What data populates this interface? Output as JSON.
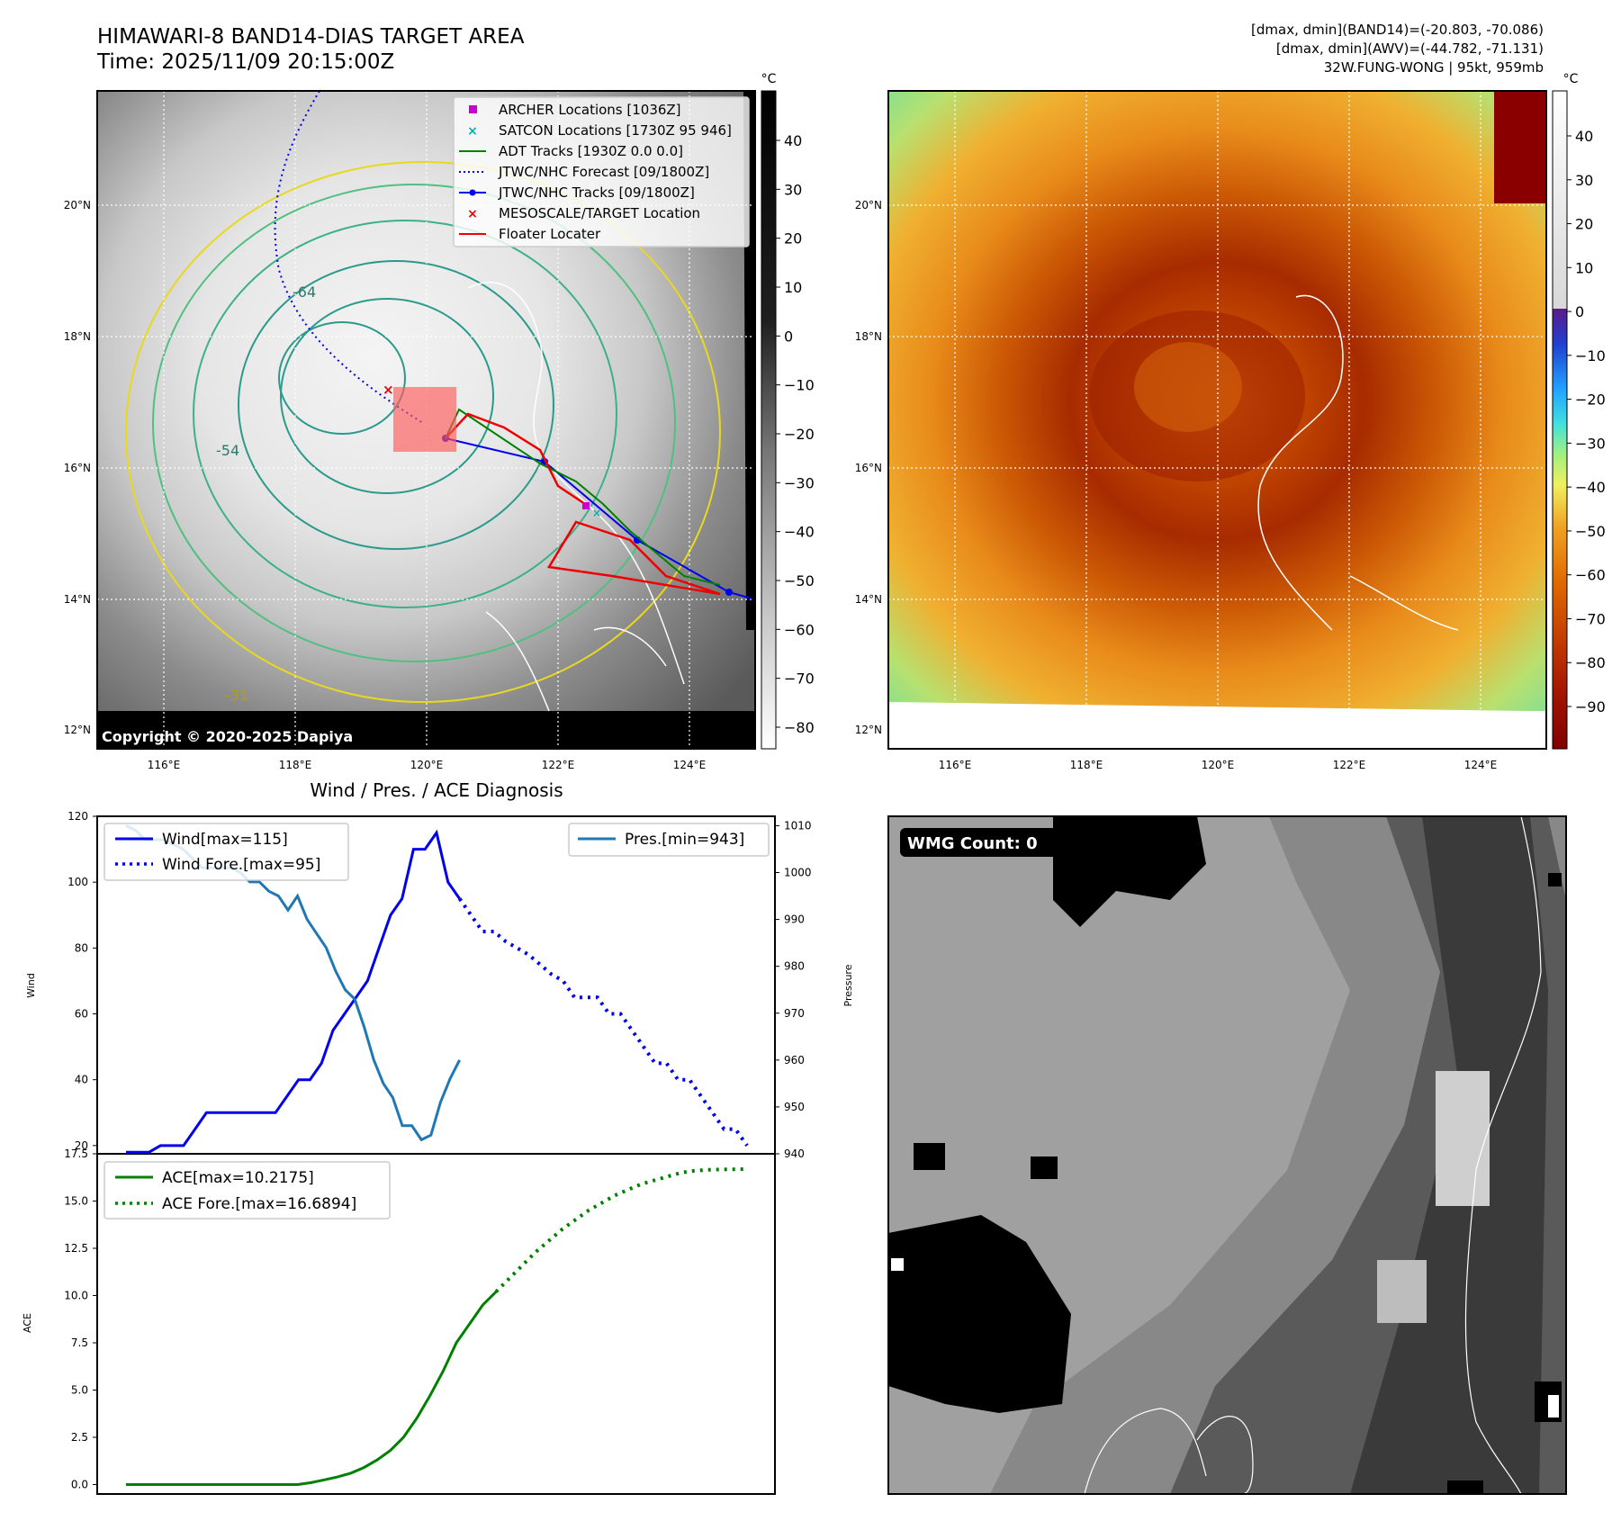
{
  "header": {
    "title": "HIMAWARI-8 BAND14-DIAS TARGET AREA",
    "time": "Time: 2025/11/09 20:15:00Z",
    "info_line1": "[dmax, dmin](BAND14)=(-20.803, -70.086)",
    "info_line2": "[dmax, dmin](AWV)=(-44.782, -71.131)",
    "info_line3": "32W.FUNG-WONG | 95kt, 959mb"
  },
  "map": {
    "lat_labels": [
      "20°N",
      "18°N",
      "16°N",
      "14°N",
      "12°N"
    ],
    "lon_labels": [
      "116°E",
      "118°E",
      "120°E",
      "122°E",
      "124°E"
    ],
    "contour_labels": [
      "-54",
      "-64",
      "-31"
    ],
    "copyright": "Copyright © 2020-2025 Dapiya",
    "legend": [
      {
        "label": "ARCHER Locations [1036Z]",
        "color": "#cc00cc",
        "marker": "square"
      },
      {
        "label": "SATCON Locations [1730Z 95 946]",
        "color": "#00b0b0",
        "marker": "x"
      },
      {
        "label": "ADT Tracks [1930Z 0.0 0.0]",
        "color": "#008000",
        "marker": "line"
      },
      {
        "label": "JTWC/NHC Forecast [09/1800Z]",
        "color": "#0000ee",
        "marker": "dotted"
      },
      {
        "label": "JTWC/NHC Tracks [09/1800Z]",
        "color": "#0000ee",
        "marker": "line-dot"
      },
      {
        "label": "MESOSCALE/TARGET Location",
        "color": "#ee0000",
        "marker": "x"
      },
      {
        "label": "Floater Locater",
        "color": "#ee0000",
        "marker": "line"
      }
    ]
  },
  "colorbar_gray": {
    "unit": "°C",
    "ticks": [
      "40",
      "30",
      "20",
      "10",
      "0",
      "−10",
      "−20",
      "−30",
      "−40",
      "−50",
      "−60",
      "−70",
      "−80"
    ]
  },
  "colorbar_color": {
    "unit": "°C",
    "ticks": [
      "40",
      "30",
      "20",
      "10",
      "0",
      "−10",
      "−20",
      "−30",
      "−40",
      "−50",
      "−60",
      "−70",
      "−80",
      "−90"
    ]
  },
  "diagnosis": {
    "title": "Wind / Pres. / ACE Diagnosis",
    "wind_ylabel": "Wind",
    "pres_ylabel": "Pressure",
    "ace_ylabel": "ACE",
    "wind_ticks": [
      "120",
      "100",
      "80",
      "60",
      "40",
      "20"
    ],
    "pres_ticks": [
      "1010",
      "1000",
      "990",
      "980",
      "970",
      "960",
      "950",
      "940"
    ],
    "ace_ticks": [
      "17.5",
      "15.0",
      "12.5",
      "10.0",
      "7.5",
      "5.0",
      "2.5",
      "0.0"
    ],
    "legend_wind": "Wind[max=115]",
    "legend_wind_fore": "Wind Fore.[max=95]",
    "legend_pres": "Pres.[min=943]",
    "legend_ace": "ACE[max=10.2175]",
    "legend_ace_fore": "ACE Fore.[max=16.6894]"
  },
  "wmg": {
    "label": "WMG Count: 0"
  },
  "chart_data": [
    {
      "type": "line",
      "title": "Wind / Pres. / ACE Diagnosis",
      "ylabel": "Wind",
      "ylim": [
        17.5,
        120
      ],
      "series": [
        {
          "name": "Wind[max=115]",
          "style": "solid",
          "color": "#0000ee",
          "values": [
            18,
            18,
            18,
            20,
            20,
            20,
            25,
            30,
            30,
            30,
            30,
            30,
            30,
            30,
            35,
            40,
            40,
            45,
            55,
            60,
            65,
            70,
            80,
            90,
            95,
            110,
            110,
            115,
            100,
            95
          ]
        },
        {
          "name": "Wind Fore.[max=95]",
          "style": "dotted",
          "color": "#0000ee",
          "values": [
            95,
            90,
            85,
            85,
            82,
            80,
            78,
            75,
            72,
            70,
            65,
            65,
            65,
            60,
            60,
            55,
            50,
            45,
            45,
            40,
            40,
            35,
            30,
            25,
            25,
            20
          ]
        }
      ]
    },
    {
      "type": "line",
      "ylabel": "Pressure",
      "ylim": [
        940,
        1012
      ],
      "series": [
        {
          "name": "Pres.[min=943]",
          "style": "solid",
          "color": "#1f77b4",
          "values": [
            1010,
            1009,
            1007,
            1007,
            1007,
            1006,
            1005,
            1003,
            1001,
            1001,
            1001,
            1001,
            1000,
            998,
            998,
            996,
            995,
            992,
            995,
            990,
            987,
            984,
            979,
            975,
            973,
            967,
            960,
            955,
            952,
            946,
            946,
            943,
            944,
            951,
            956,
            960
          ]
        }
      ]
    },
    {
      "type": "line",
      "ylabel": "ACE",
      "ylim": [
        -0.5,
        17.5
      ],
      "series": [
        {
          "name": "ACE[max=10.2175]",
          "style": "solid",
          "color": "#008000",
          "values": [
            0,
            0,
            0,
            0,
            0,
            0,
            0,
            0,
            0,
            0,
            0,
            0,
            0,
            0,
            0.1,
            0.25,
            0.4,
            0.6,
            0.9,
            1.3,
            1.8,
            2.5,
            3.5,
            4.7,
            6.0,
            7.5,
            8.5,
            9.5,
            10.2
          ]
        },
        {
          "name": "ACE Fore.[max=16.6894]",
          "style": "dotted",
          "color": "#008000",
          "values": [
            10.2,
            10.9,
            11.6,
            12.3,
            12.9,
            13.5,
            14.0,
            14.5,
            14.9,
            15.3,
            15.6,
            15.9,
            16.1,
            16.3,
            16.5,
            16.6,
            16.65,
            16.67,
            16.68,
            16.689
          ]
        }
      ]
    }
  ]
}
